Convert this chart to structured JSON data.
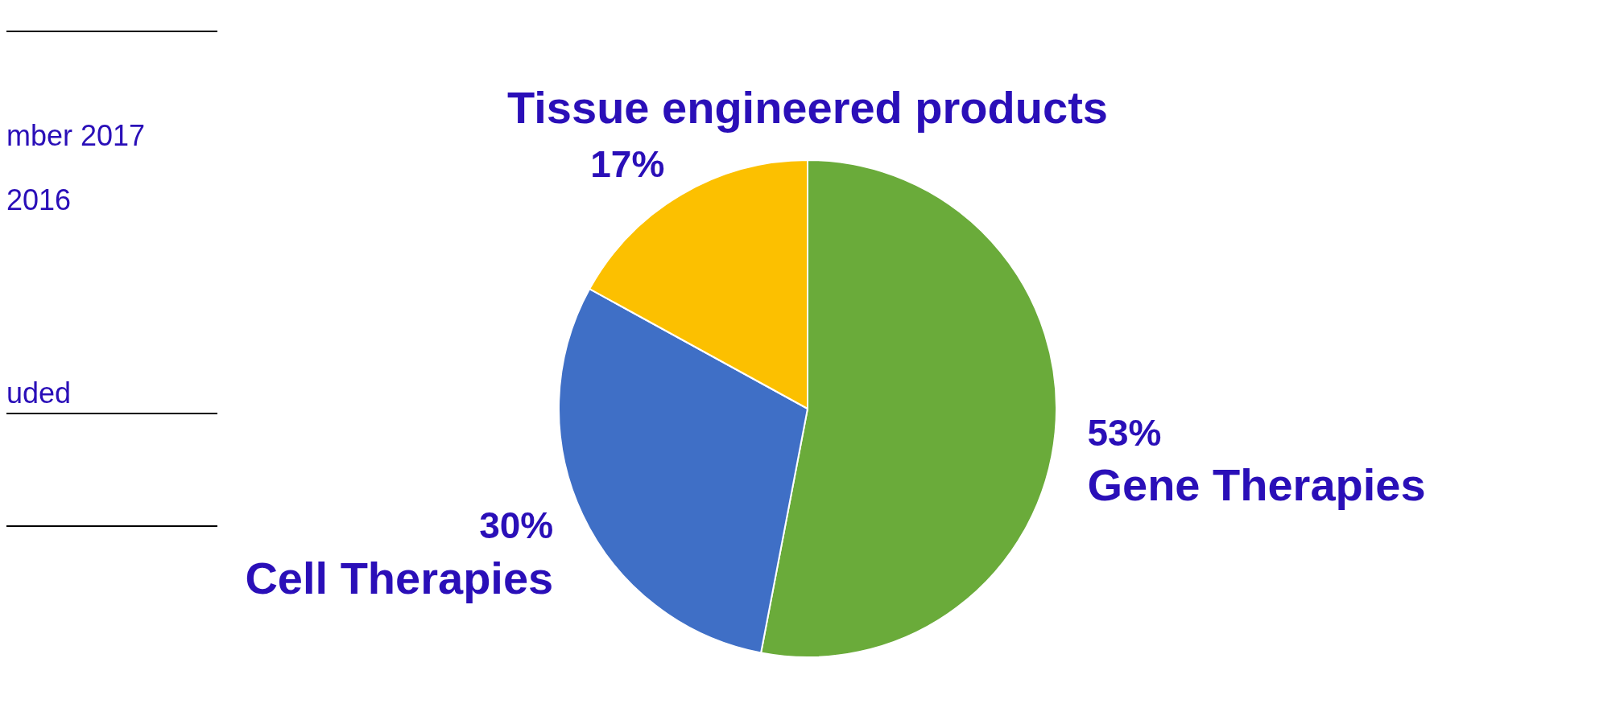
{
  "chart_data": {
    "type": "pie",
    "categories": [
      "Gene Therapies",
      "Cell Therapies",
      "Tissue engineered products"
    ],
    "values": [
      53,
      30,
      17
    ],
    "colors": [
      "#6aab3a",
      "#3f6fc6",
      "#fcc000"
    ],
    "value_labels": [
      "53%",
      "30%",
      "17%"
    ],
    "legend": false,
    "annotations": [
      "mber 2017",
      "2016",
      "uded"
    ]
  }
}
